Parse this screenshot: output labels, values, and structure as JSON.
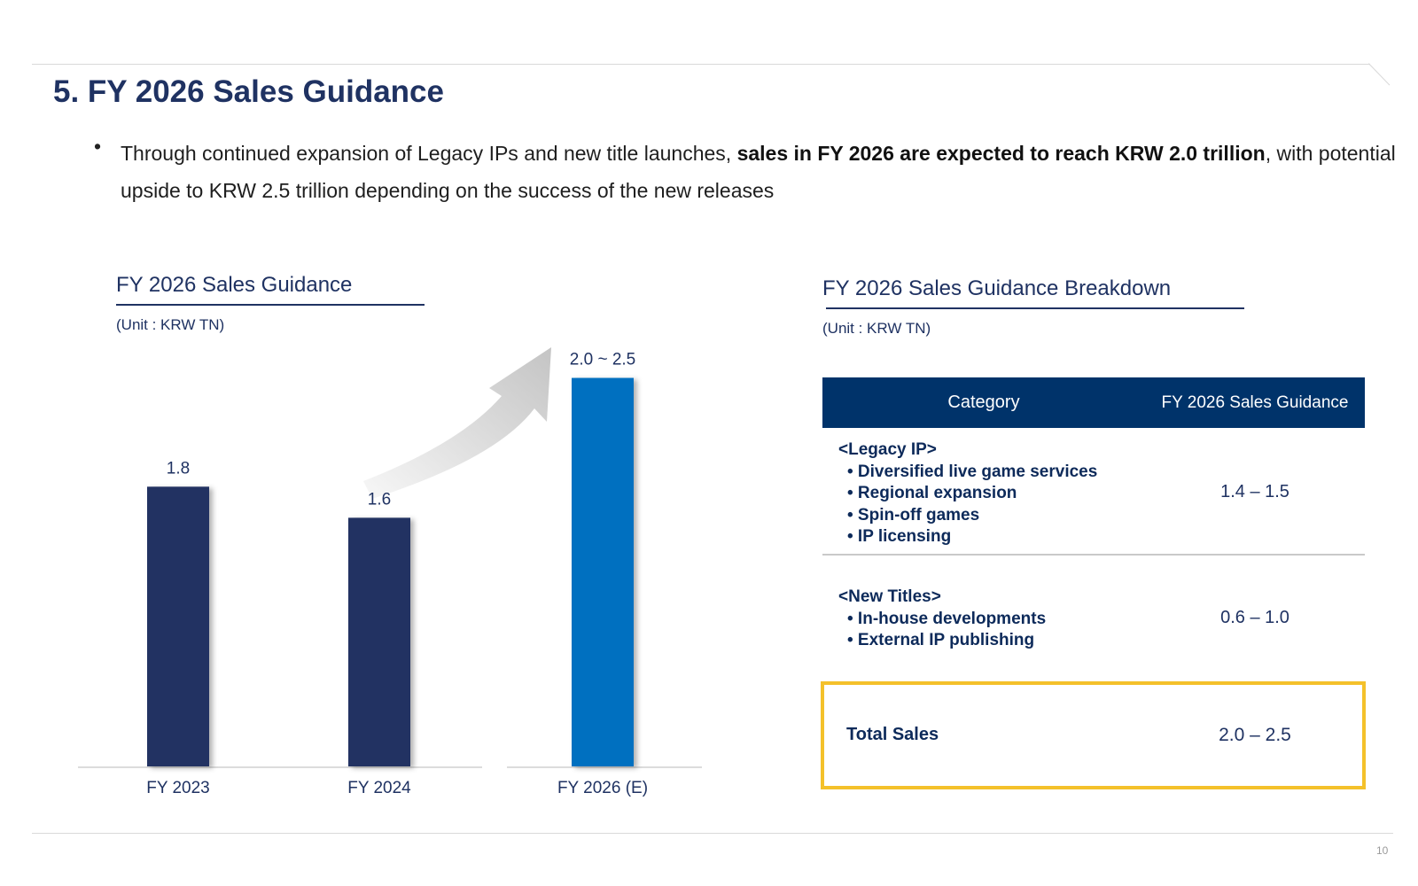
{
  "header": {
    "title": "5. FY 2026 Sales Guidance"
  },
  "intro": {
    "bullet": "•",
    "text_part1": "Through continued expansion of Legacy IPs and new title launches, ",
    "text_bold": "sales in FY 2026 are expected to reach KRW 2.0 trillion",
    "text_part2": ", with potential upside to KRW 2.5 trillion depending on the success of the new releases"
  },
  "left_panel": {
    "title": "FY 2026 Sales Guidance",
    "unit": "(Unit : KRW TN)"
  },
  "right_panel": {
    "title": "FY 2026 Sales Guidance Breakdown",
    "unit": "(Unit : KRW TN)",
    "table": {
      "headers": [
        "Category",
        "FY 2026 Sales Guidance"
      ],
      "rows": [
        {
          "category": "<Legacy IP>",
          "items": [
            "• Diversified live game services",
            "• Regional expansion",
            "• Spin-off games",
            "• IP licensing"
          ],
          "value": "1.4 – 1.5"
        },
        {
          "category": "<New Titles>",
          "items": [
            "• In-house developments",
            "• External IP publishing"
          ],
          "value": "0.6 – 1.0"
        }
      ],
      "total": {
        "label": "Total Sales",
        "value": "2.0 – 2.5"
      }
    }
  },
  "chart_data": {
    "type": "bar",
    "title": "FY 2026 Sales Guidance",
    "ylabel": "",
    "xlabel": "",
    "categories": [
      "FY 2023",
      "FY 2024",
      "FY 2026 (E)"
    ],
    "values": [
      1.8,
      1.6,
      2.5
    ],
    "data_labels": [
      "1.8",
      "1.6",
      "2.0 ~ 2.5"
    ],
    "ylim": [
      0,
      2.6
    ],
    "grid": false,
    "colors": [
      "#223162",
      "#223162",
      "#0070c0"
    ]
  },
  "colors": {
    "navy": "#1f3262",
    "table_header": "#00336a",
    "highlight": "#f4c12a",
    "bar_dark": "#223162",
    "bar_blue": "#0070c0"
  },
  "footer": {
    "page_number": "10"
  }
}
